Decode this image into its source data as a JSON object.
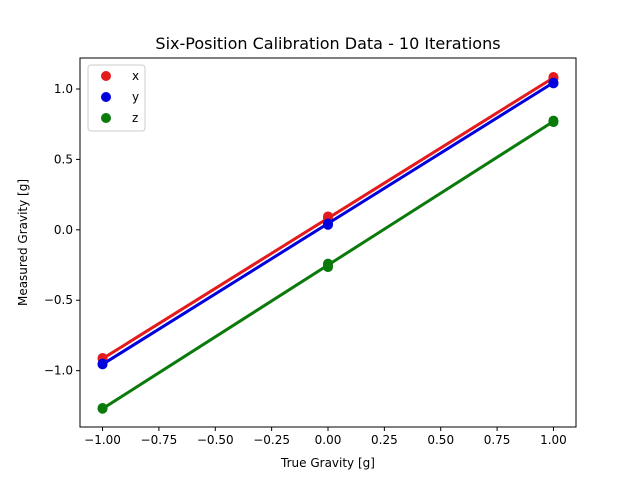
{
  "chart_data": {
    "type": "scatter",
    "title": "Six-Position Calibration Data - 10 Iterations",
    "xlabel": "True Gravity [g]",
    "ylabel": "Measured Gravity [g]",
    "xlim": [
      -1.1,
      1.1
    ],
    "ylim": [
      -1.4,
      1.22
    ],
    "grid": false,
    "legend_position": "upper-left",
    "x_ticks": [
      -1.0,
      -0.75,
      -0.5,
      -0.25,
      0.0,
      0.25,
      0.5,
      0.75,
      1.0
    ],
    "x_tick_labels": [
      "−1.00",
      "−0.75",
      "−0.50",
      "−0.25",
      "0.00",
      "0.25",
      "0.50",
      "0.75",
      "1.00"
    ],
    "y_ticks": [
      -1.0,
      -0.5,
      0.0,
      0.5,
      1.0
    ],
    "y_tick_labels": [
      "−1.0",
      "−0.5",
      "0.0",
      "0.5",
      "1.0"
    ],
    "series": [
      {
        "name": "x",
        "color": "#e41a1c",
        "points": [
          {
            "x": -1.0,
            "y": -0.91
          },
          {
            "x": -1.0,
            "y": -0.915
          },
          {
            "x": 0.0,
            "y": 0.08
          },
          {
            "x": 0.0,
            "y": 0.095
          },
          {
            "x": 1.0,
            "y": 1.075
          },
          {
            "x": 1.0,
            "y": 1.085
          }
        ],
        "fit": [
          {
            "x": -1.0,
            "y": -0.915
          },
          {
            "x": 1.0,
            "y": 1.08
          }
        ]
      },
      {
        "name": "y",
        "color": "#0000dd",
        "points": [
          {
            "x": -1.0,
            "y": -0.95
          },
          {
            "x": -1.0,
            "y": -0.955
          },
          {
            "x": 0.0,
            "y": 0.035
          },
          {
            "x": 0.0,
            "y": 0.045
          },
          {
            "x": 1.0,
            "y": 1.04
          },
          {
            "x": 1.0,
            "y": 1.045
          }
        ],
        "fit": [
          {
            "x": -1.0,
            "y": -0.955
          },
          {
            "x": 1.0,
            "y": 1.045
          }
        ]
      },
      {
        "name": "z",
        "color": "#0a7a0a",
        "points": [
          {
            "x": -1.0,
            "y": -1.27
          },
          {
            "x": -1.0,
            "y": -1.265
          },
          {
            "x": 0.0,
            "y": -0.24
          },
          {
            "x": 0.0,
            "y": -0.255
          },
          {
            "x": 0.0,
            "y": -0.265
          },
          {
            "x": 1.0,
            "y": 0.765
          },
          {
            "x": 1.0,
            "y": 0.775
          }
        ],
        "fit": [
          {
            "x": -1.0,
            "y": -1.27
          },
          {
            "x": 1.0,
            "y": 0.77
          }
        ]
      }
    ]
  }
}
